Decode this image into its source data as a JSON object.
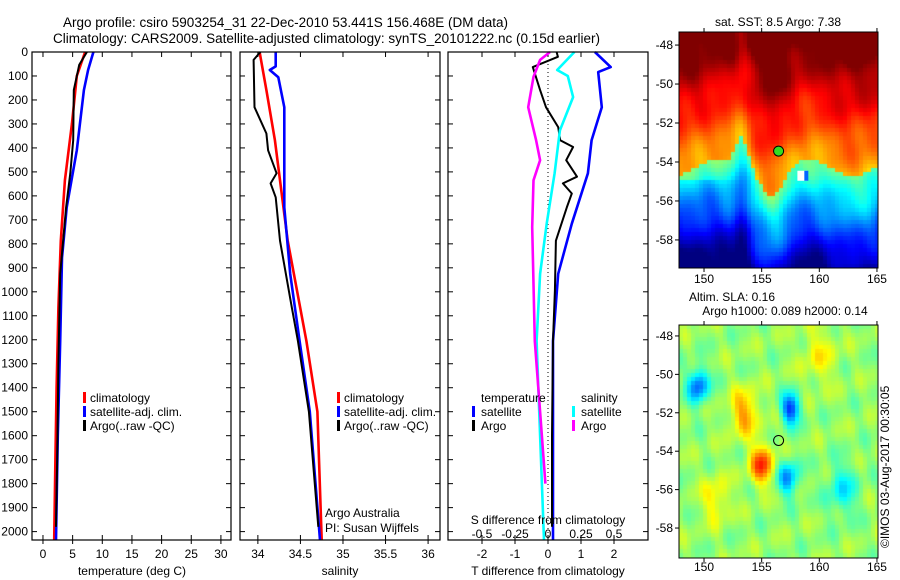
{
  "title": {
    "line1": "Argo profile: csiro 5903254_31 22-Dec-2010 53.441S 156.468E (DM data)",
    "line2": "Climatology: CARS2009. Satellite-adjusted climatology: synTS_20101222.nc (0.15d earlier)"
  },
  "depth_ticks": [
    "0",
    "100",
    "200",
    "300",
    "400",
    "500",
    "600",
    "700",
    "800",
    "900",
    "1000",
    "1100",
    "1200",
    "1300",
    "1400",
    "1500",
    "1600",
    "1700",
    "1800",
    "1900",
    "2000"
  ],
  "chart_data": [
    {
      "type": "line",
      "xlabel": "temperature (deg C)",
      "ylabel": "depth",
      "xlim": [
        -1.85,
        31.7
      ],
      "ylim": [
        0,
        2035
      ],
      "xticks": [
        0,
        5,
        10,
        15,
        20,
        25,
        30
      ],
      "xtick_labels": [
        "0",
        "5",
        "10",
        "15",
        "20",
        "25",
        "30"
      ],
      "legend": [
        "climatology",
        "satellite-adj. clim.",
        "Argo(..raw -QC)"
      ],
      "series": [
        {
          "name": "climatology",
          "color": "#ff0000",
          "depth": [
            0,
            100,
            297,
            535,
            787,
            1067,
            1400,
            1700,
            2035
          ],
          "values": [
            7.1,
            5.7,
            4.9,
            3.7,
            3.0,
            2.6,
            2.3,
            2.1,
            1.9
          ]
        },
        {
          "name": "satellite-adj. clim.",
          "color": "#0000ff",
          "depth": [
            0,
            75,
            159,
            410,
            648,
            858,
            1205,
            1600,
            2035
          ],
          "values": [
            8.5,
            7.6,
            6.9,
            5.7,
            4.0,
            3.2,
            2.9,
            2.5,
            2.2
          ]
        },
        {
          "name": "Argo(..raw -QC)",
          "color": "#000000",
          "depth": [
            0,
            54,
            159,
            368,
            506,
            648,
            925,
            1300,
            1700,
            1980
          ],
          "values": [
            7.4,
            6.1,
            5.2,
            5.1,
            4.6,
            3.9,
            2.9,
            2.6,
            2.4,
            2.2
          ]
        }
      ]
    },
    {
      "type": "line",
      "xlabel": "salinity",
      "ylabel": "depth",
      "xlim": [
        33.79,
        36.14
      ],
      "ylim": [
        0,
        2035
      ],
      "xticks": [
        34,
        34.5,
        35,
        35.5,
        36
      ],
      "xtick_labels": [
        "34",
        "34.5",
        "35",
        "35.5",
        "36"
      ],
      "legend": [
        "climatology",
        "satellite-adj. clim.",
        "Argo(..raw -QC)"
      ],
      "annotation": [
        "Argo Australia",
        "PI: Susan Wijffels"
      ],
      "series": [
        {
          "name": "climatology",
          "color": "#ff0000",
          "depth": [
            0,
            159,
            368,
            620,
            787,
            1205,
            1500,
            2035
          ],
          "values": [
            34.02,
            34.1,
            34.2,
            34.29,
            34.35,
            34.57,
            34.7,
            34.75
          ]
        },
        {
          "name": "satellite-adj. clim.",
          "color": "#0000ff",
          "depth": [
            0,
            60,
            75,
            105,
            230,
            648,
            925,
            1205,
            1500,
            2035
          ],
          "values": [
            34.21,
            34.21,
            34.14,
            34.24,
            34.31,
            34.31,
            34.38,
            34.49,
            34.61,
            34.73
          ]
        },
        {
          "name": "Argo(..raw -QC)",
          "color": "#000000",
          "depth": [
            0,
            33,
            230,
            340,
            410,
            506,
            548,
            606,
            787,
            1067,
            1205,
            1500,
            1980
          ],
          "values": [
            34.03,
            33.95,
            33.96,
            34.1,
            34.12,
            34.22,
            34.15,
            34.21,
            34.26,
            34.4,
            34.47,
            34.6,
            34.71
          ]
        }
      ]
    },
    {
      "type": "line",
      "xlabel": "T difference from climatology",
      "xlabel2": "S difference from climatology",
      "ylabel": "depth",
      "xlim": [
        -3.03,
        3.03
      ],
      "ylim": [
        0,
        2035
      ],
      "xticks": [
        -2,
        -1,
        0,
        1,
        2
      ],
      "xtick_labels": [
        "-2",
        "-1",
        "0",
        "1",
        "2"
      ],
      "s_xticks": [
        -0.5,
        -0.25,
        0,
        0.25,
        0.5
      ],
      "s_xtick_labels": [
        "-0.5",
        "-0.25",
        "0",
        "0.25",
        "0.5"
      ],
      "legend_temperature": {
        "heading": "temperature",
        "items": [
          "satellite",
          "Argo"
        ]
      },
      "legend_salinity": {
        "heading": "salinity",
        "items": [
          "satellite",
          "Argo"
        ]
      },
      "series": [
        {
          "name": "T satellite",
          "color": "#0000ff",
          "axis": "T",
          "depth": [
            0,
            63,
            84,
            230,
            368,
            506,
            716,
            925,
            1205,
            1600,
            2035
          ],
          "values": [
            1.42,
            1.9,
            1.52,
            1.63,
            1.32,
            1.21,
            0.72,
            0.31,
            0.15,
            0.15,
            0.15
          ]
        },
        {
          "name": "T Argo",
          "color": "#000000",
          "axis": "T",
          "depth": [
            0,
            20,
            63,
            159,
            230,
            313,
            368,
            396,
            451,
            520,
            548,
            590,
            648,
            787,
            995,
            1205,
            1600,
            1980
          ],
          "values": [
            0.26,
            0.3,
            -0.46,
            -0.24,
            -0.06,
            0.31,
            0.37,
            0.76,
            0.55,
            0.88,
            0.45,
            0.72,
            0.57,
            0.24,
            0.21,
            0.15,
            0.12,
            0.12
          ]
        },
        {
          "name": "S satellite",
          "color": "#00ffff",
          "axis": "S",
          "depth": [
            0,
            75,
            100,
            188,
            327,
            506,
            716,
            925,
            1205,
            1600,
            2035
          ],
          "values": [
            0.2,
            0.07,
            0.15,
            0.19,
            0.09,
            0.05,
            -0.01,
            -0.06,
            -0.086,
            -0.06,
            -0.03
          ]
        },
        {
          "name": "S Argo",
          "color": "#ff00ff",
          "axis": "S",
          "depth": [
            0,
            33,
            104,
            230,
            368,
            451,
            535,
            730,
            1205,
            1500,
            1800
          ],
          "values": [
            0.015,
            -0.06,
            -0.11,
            -0.15,
            -0.09,
            -0.06,
            -0.11,
            -0.12,
            -0.1,
            -0.06,
            -0.02
          ]
        }
      ]
    }
  ],
  "maps": [
    {
      "title": "sat. SST: 8.5 Argo: 7.38",
      "lon_ticks": [
        "150",
        "155",
        "160",
        "165"
      ],
      "lat_ticks": [
        "-48",
        "-50",
        "-52",
        "-54",
        "-56",
        "-58"
      ],
      "lonlim": [
        147.83,
        165.09
      ],
      "latlim": [
        -59.44,
        -47.33
      ]
    },
    {
      "title_line1": "Altim. SLA: 0.16",
      "title_line2": "Argo h1000: 0.089 h2000: 0.14",
      "lon_ticks": [
        "150",
        "155",
        "160",
        "165"
      ],
      "lat_ticks": [
        "-48",
        "-50",
        "-52",
        "-54",
        "-56",
        "-58"
      ],
      "lonlim": [
        147.83,
        165.09
      ],
      "latlim": [
        -59.56,
        -47.43
      ]
    }
  ],
  "argo_position": {
    "lat": -53.441,
    "lon": 156.468
  },
  "watermark": "©IMOS 03-Aug-2017 00:30:05"
}
